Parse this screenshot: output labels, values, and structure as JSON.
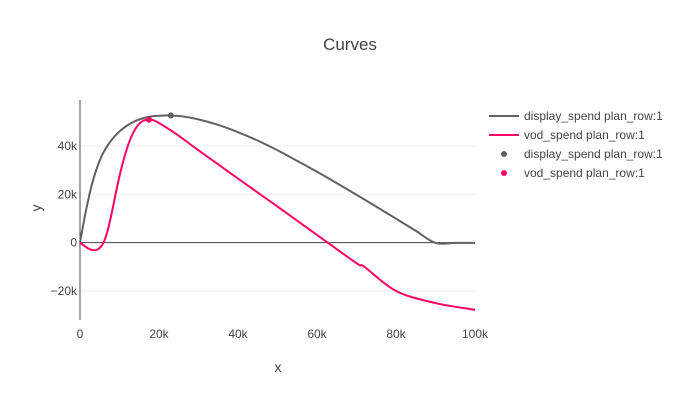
{
  "chart_data": {
    "type": "line",
    "title": "Curves",
    "xlabel": "x",
    "ylabel": "y",
    "xlim": [
      0,
      100000
    ],
    "ylim": [
      -32000,
      59000
    ],
    "x_ticks": [
      0,
      20000,
      40000,
      60000,
      80000,
      100000
    ],
    "x_tick_labels": [
      "0",
      "20k",
      "40k",
      "60k",
      "80k",
      "100k"
    ],
    "y_ticks": [
      -20000,
      0,
      20000,
      40000
    ],
    "y_tick_labels": [
      "−20k",
      "0",
      "20k",
      "40k"
    ],
    "grid": true,
    "legend_position": "right",
    "series": [
      {
        "name": "display_spend plan_row:1",
        "kind": "line",
        "color": "#616161",
        "x": [
          0,
          1000,
          2000,
          3000,
          4000,
          5000,
          6000,
          8000,
          10000,
          12000,
          14000,
          16000,
          18000,
          20000,
          23000,
          26000,
          30000,
          35000,
          40000,
          45000,
          50000,
          55000,
          60000,
          65000,
          70000,
          75000,
          80000,
          85000,
          90000,
          95000,
          100000
        ],
        "y": [
          0,
          9000,
          17000,
          24000,
          29500,
          34000,
          37500,
          42500,
          46000,
          48500,
          50300,
          51500,
          52200,
          52500,
          52600,
          52200,
          51000,
          48700,
          45700,
          42200,
          38200,
          33800,
          29300,
          24600,
          19800,
          14900,
          9900,
          4900,
          -100,
          -100,
          -100
        ]
      },
      {
        "name": "vod_spend plan_row:1",
        "kind": "line",
        "color": "#ff0066",
        "x": [
          0,
          1000,
          2000,
          3000,
          4000,
          5000,
          6000,
          7000,
          8000,
          9000,
          10000,
          11000,
          12000,
          13000,
          14000,
          15000,
          16000,
          17000,
          18000,
          20000,
          25000,
          30000,
          40000,
          50000,
          60000,
          70000,
          72000,
          80000,
          90000,
          100000
        ],
        "y": [
          0,
          -1200,
          -2300,
          -3000,
          -3100,
          -2200,
          200,
          5000,
          12000,
          20000,
          27500,
          34000,
          39500,
          43800,
          47000,
          49200,
          50400,
          50900,
          50900,
          49500,
          44200,
          38200,
          26500,
          14900,
          3200,
          -8500,
          -10000,
          -20000,
          -25000,
          -27800
        ]
      },
      {
        "name": "display_spend plan_row:1",
        "kind": "marker",
        "color": "#616161",
        "x": [
          23000
        ],
        "y": [
          52600
        ]
      },
      {
        "name": "vod_spend plan_row:1",
        "kind": "marker",
        "color": "#ff0066",
        "x": [
          17500
        ],
        "y": [
          50900
        ]
      }
    ]
  }
}
